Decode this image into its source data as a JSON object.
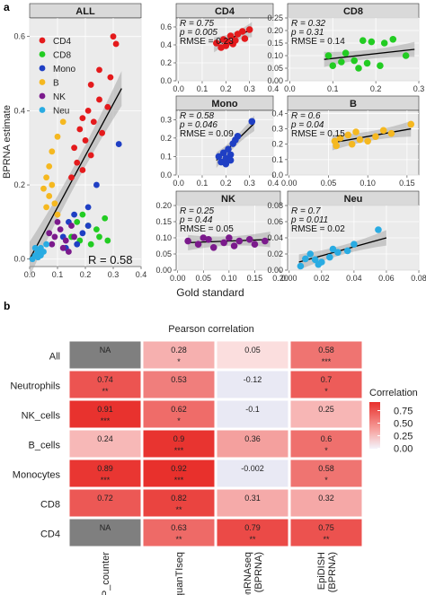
{
  "panel_labels": {
    "a": "a",
    "b": "b"
  },
  "colors": {
    "CD4": "#e41a1c",
    "CD8": "#22cc22",
    "Mono": "#1f3fc4",
    "B": "#f5b820",
    "NK": "#7b1a8c",
    "Neu": "#29abe2",
    "panel_bg": "#ebebeb",
    "grid": "#ffffff",
    "strip_bg": "#d9d9d9",
    "fit_line": "#000000",
    "ci_band": "#9a9a9a",
    "na_cell": "#7f7f7f",
    "heat_low": "#f0f0fa",
    "heat_high": "#e8302c"
  },
  "chart_data": [
    {
      "type": "scatter",
      "strip": "ALL",
      "ylabel": "BPRNA estimate",
      "xlabel": "Gold standard",
      "xlim": [
        0,
        0.4
      ],
      "ylim": [
        -0.02,
        0.65
      ],
      "xticks": [
        "0.0",
        "0.1",
        "0.2",
        "0.3",
        "0.4"
      ],
      "yticks": [
        "0.0",
        "0.2",
        "0.4",
        "0.6"
      ],
      "legend": [
        "CD4",
        "CD8",
        "Mono",
        "B",
        "NK",
        "Neu"
      ],
      "legend_position": "top-left",
      "stat_text": "R =  0.58",
      "grid": true,
      "fit": {
        "x0": 0.0,
        "y0": 0.0,
        "x1": 0.33,
        "y1": 0.46
      },
      "points": [
        {
          "g": "CD4",
          "x": 0.3,
          "y": 0.6
        },
        {
          "g": "CD4",
          "x": 0.31,
          "y": 0.58
        },
        {
          "g": "CD4",
          "x": 0.25,
          "y": 0.51
        },
        {
          "g": "CD4",
          "x": 0.22,
          "y": 0.47
        },
        {
          "g": "CD4",
          "x": 0.29,
          "y": 0.49
        },
        {
          "g": "CD4",
          "x": 0.19,
          "y": 0.38
        },
        {
          "g": "CD4",
          "x": 0.21,
          "y": 0.4
        },
        {
          "g": "CD4",
          "x": 0.18,
          "y": 0.35
        },
        {
          "g": "CD4",
          "x": 0.25,
          "y": 0.43
        },
        {
          "g": "CD4",
          "x": 0.28,
          "y": 0.41
        },
        {
          "g": "CD4",
          "x": 0.23,
          "y": 0.37
        },
        {
          "g": "CD4",
          "x": 0.16,
          "y": 0.3
        },
        {
          "g": "CD4",
          "x": 0.2,
          "y": 0.32
        },
        {
          "g": "CD4",
          "x": 0.22,
          "y": 0.28
        },
        {
          "g": "CD4",
          "x": 0.15,
          "y": 0.22
        },
        {
          "g": "CD4",
          "x": 0.19,
          "y": 0.24
        },
        {
          "g": "CD4",
          "x": 0.17,
          "y": 0.26
        },
        {
          "g": "CD4",
          "x": 0.26,
          "y": 0.34
        },
        {
          "g": "CD8",
          "x": 0.19,
          "y": 0.12
        },
        {
          "g": "CD8",
          "x": 0.17,
          "y": 0.1
        },
        {
          "g": "CD8",
          "x": 0.21,
          "y": 0.09
        },
        {
          "g": "CD8",
          "x": 0.24,
          "y": 0.08
        },
        {
          "g": "CD8",
          "x": 0.27,
          "y": 0.11
        },
        {
          "g": "CD8",
          "x": 0.15,
          "y": 0.06
        },
        {
          "g": "CD8",
          "x": 0.18,
          "y": 0.05
        },
        {
          "g": "CD8",
          "x": 0.22,
          "y": 0.04
        },
        {
          "g": "CD8",
          "x": 0.25,
          "y": 0.06
        },
        {
          "g": "CD8",
          "x": 0.28,
          "y": 0.05
        },
        {
          "g": "Mono",
          "x": 0.32,
          "y": 0.31
        },
        {
          "g": "Mono",
          "x": 0.24,
          "y": 0.2
        },
        {
          "g": "Mono",
          "x": 0.21,
          "y": 0.14
        },
        {
          "g": "Mono",
          "x": 0.16,
          "y": 0.12
        },
        {
          "g": "Mono",
          "x": 0.14,
          "y": 0.1
        },
        {
          "g": "Mono",
          "x": 0.19,
          "y": 0.07
        },
        {
          "g": "Mono",
          "x": 0.12,
          "y": 0.06
        },
        {
          "g": "Mono",
          "x": 0.17,
          "y": 0.04
        },
        {
          "g": "Mono",
          "x": 0.13,
          "y": 0.03
        },
        {
          "g": "Mono",
          "x": 0.21,
          "y": 0.09
        },
        {
          "g": "B",
          "x": 0.12,
          "y": 0.37
        },
        {
          "g": "B",
          "x": 0.1,
          "y": 0.33
        },
        {
          "g": "B",
          "x": 0.08,
          "y": 0.29
        },
        {
          "g": "B",
          "x": 0.07,
          "y": 0.25
        },
        {
          "g": "B",
          "x": 0.06,
          "y": 0.22
        },
        {
          "g": "B",
          "x": 0.08,
          "y": 0.2
        },
        {
          "g": "B",
          "x": 0.07,
          "y": 0.17
        },
        {
          "g": "B",
          "x": 0.09,
          "y": 0.15
        },
        {
          "g": "B",
          "x": 0.06,
          "y": 0.14
        },
        {
          "g": "B",
          "x": 0.1,
          "y": 0.12
        },
        {
          "g": "B",
          "x": 0.05,
          "y": 0.19
        },
        {
          "g": "NK",
          "x": 0.15,
          "y": 0.09
        },
        {
          "g": "NK",
          "x": 0.11,
          "y": 0.08
        },
        {
          "g": "NK",
          "x": 0.09,
          "y": 0.06
        },
        {
          "g": "NK",
          "x": 0.13,
          "y": 0.05
        },
        {
          "g": "NK",
          "x": 0.08,
          "y": 0.04
        },
        {
          "g": "NK",
          "x": 0.12,
          "y": 0.03
        },
        {
          "g": "NK",
          "x": 0.07,
          "y": 0.07
        },
        {
          "g": "NK",
          "x": 0.1,
          "y": 0.1
        },
        {
          "g": "NK",
          "x": 0.14,
          "y": 0.02
        },
        {
          "g": "NK",
          "x": 0.16,
          "y": 0.06
        },
        {
          "g": "Neu",
          "x": 0.06,
          "y": 0.04
        },
        {
          "g": "Neu",
          "x": 0.04,
          "y": 0.03
        },
        {
          "g": "Neu",
          "x": 0.03,
          "y": 0.02
        },
        {
          "g": "Neu",
          "x": 0.02,
          "y": 0.01
        },
        {
          "g": "Neu",
          "x": 0.05,
          "y": 0.02
        },
        {
          "g": "Neu",
          "x": 0.03,
          "y": 0.005
        },
        {
          "g": "Neu",
          "x": 0.01,
          "y": 0.0
        },
        {
          "g": "Neu",
          "x": 0.04,
          "y": 0.01
        },
        {
          "g": "Neu",
          "x": 0.02,
          "y": 0.03
        }
      ]
    },
    {
      "type": "scatter",
      "strip": "CD4",
      "group": "CD4",
      "stats": [
        "R = 0.75",
        "p = 0.005",
        "RMSE = 0.23"
      ],
      "xlim": [
        -0.01,
        0.4
      ],
      "ylim": [
        0,
        0.7
      ],
      "xticks": [
        "0.0",
        "0.1",
        "0.2",
        "0.3",
        "0.4"
      ],
      "yticks": [
        "0.0",
        "0.2",
        "0.4",
        "0.6"
      ],
      "fit": {
        "x0": 0.15,
        "y0": 0.4,
        "x1": 0.31,
        "y1": 0.57
      },
      "points": [
        [
          0.16,
          0.42
        ],
        [
          0.18,
          0.37
        ],
        [
          0.19,
          0.46
        ],
        [
          0.21,
          0.43
        ],
        [
          0.22,
          0.5
        ],
        [
          0.23,
          0.41
        ],
        [
          0.25,
          0.52
        ],
        [
          0.27,
          0.55
        ],
        [
          0.28,
          0.47
        ],
        [
          0.3,
          0.57
        ],
        [
          0.2,
          0.39
        ],
        [
          0.24,
          0.45
        ]
      ]
    },
    {
      "type": "scatter",
      "strip": "CD8",
      "group": "CD8",
      "stats": [
        "R = 0.32",
        "p = 0.31",
        "RMSE = 0.14"
      ],
      "xlim": [
        -0.005,
        0.3
      ],
      "ylim": [
        0,
        0.25
      ],
      "xticks": [
        "0.0",
        "0.1",
        "0.2",
        "0.3"
      ],
      "yticks": [
        "0.00",
        "0.05",
        "0.10",
        "0.15",
        "0.20",
        "0.25"
      ],
      "fit": {
        "x0": 0.08,
        "y0": 0.085,
        "x1": 0.29,
        "y1": 0.125
      },
      "points": [
        [
          0.09,
          0.1
        ],
        [
          0.1,
          0.06
        ],
        [
          0.12,
          0.075
        ],
        [
          0.13,
          0.11
        ],
        [
          0.15,
          0.08
        ],
        [
          0.16,
          0.05
        ],
        [
          0.18,
          0.07
        ],
        [
          0.17,
          0.16
        ],
        [
          0.19,
          0.155
        ],
        [
          0.22,
          0.15
        ],
        [
          0.24,
          0.165
        ],
        [
          0.27,
          0.1
        ],
        [
          0.21,
          0.06
        ]
      ]
    },
    {
      "type": "scatter",
      "strip": "Mono",
      "group": "Mono",
      "stats": [
        "R = 0.58",
        "p = 0.046",
        "RMSE = 0.09"
      ],
      "xlim": [
        -0.01,
        0.4
      ],
      "ylim": [
        0,
        0.35
      ],
      "xticks": [
        "0.0",
        "0.1",
        "0.2",
        "0.3",
        "0.4"
      ],
      "yticks": [
        "0.0",
        "0.1",
        "0.2",
        "0.3"
      ],
      "fit": {
        "x0": 0.16,
        "y0": 0.08,
        "x1": 0.32,
        "y1": 0.28
      },
      "points": [
        [
          0.17,
          0.1
        ],
        [
          0.18,
          0.07
        ],
        [
          0.19,
          0.12
        ],
        [
          0.2,
          0.09
        ],
        [
          0.21,
          0.14
        ],
        [
          0.22,
          0.11
        ],
        [
          0.23,
          0.17
        ],
        [
          0.24,
          0.19
        ],
        [
          0.25,
          0.21
        ],
        [
          0.22,
          0.08
        ],
        [
          0.2,
          0.06
        ],
        [
          0.31,
          0.29
        ]
      ]
    },
    {
      "type": "scatter",
      "strip": "B",
      "group": "B",
      "stats": [
        "R = 0.6",
        "p = 0.04",
        "RMSE = 0.15"
      ],
      "xlim": [
        -0.002,
        0.165
      ],
      "ylim": [
        0,
        0.42
      ],
      "xticks": [
        "0.00",
        "0.05",
        "0.10",
        "0.15"
      ],
      "yticks": [
        "0.0",
        "0.1",
        "0.2",
        "0.3",
        "0.4"
      ],
      "fit": {
        "x0": 0.055,
        "y0": 0.21,
        "x1": 0.155,
        "y1": 0.3
      },
      "points": [
        [
          0.058,
          0.22
        ],
        [
          0.065,
          0.24
        ],
        [
          0.075,
          0.26
        ],
        [
          0.08,
          0.2
        ],
        [
          0.085,
          0.28
        ],
        [
          0.09,
          0.23
        ],
        [
          0.1,
          0.22
        ],
        [
          0.11,
          0.25
        ],
        [
          0.12,
          0.29
        ],
        [
          0.13,
          0.27
        ],
        [
          0.155,
          0.33
        ],
        [
          0.06,
          0.19
        ]
      ]
    },
    {
      "type": "scatter",
      "strip": "NK",
      "group": "NK",
      "stats": [
        "R = 0.25",
        "p = 0.44",
        "RMSE = 0.05"
      ],
      "xlim": [
        -0.003,
        0.2
      ],
      "ylim": [
        0,
        0.2
      ],
      "xticks": [
        "0.00",
        "0.05",
        "0.10",
        "0.15",
        "0.20"
      ],
      "yticks": [
        "0.00",
        "0.05",
        "0.10",
        "0.15",
        "0.20"
      ],
      "fit": {
        "x0": 0.02,
        "y0": 0.085,
        "x1": 0.18,
        "y1": 0.095
      },
      "points": [
        [
          0.02,
          0.09
        ],
        [
          0.04,
          0.08
        ],
        [
          0.06,
          0.095
        ],
        [
          0.07,
          0.07
        ],
        [
          0.09,
          0.085
        ],
        [
          0.1,
          0.1
        ],
        [
          0.11,
          0.075
        ],
        [
          0.12,
          0.09
        ],
        [
          0.14,
          0.095
        ],
        [
          0.15,
          0.08
        ],
        [
          0.17,
          0.09
        ],
        [
          0.05,
          0.1
        ]
      ]
    },
    {
      "type": "scatter",
      "strip": "Neu",
      "group": "Neu",
      "stats": [
        "R = 0.7",
        "p = 0.011",
        "RMSE = 0.02"
      ],
      "xlim": [
        -0.001,
        0.08
      ],
      "ylim": [
        0,
        0.08
      ],
      "xticks": [
        "0.00",
        "0.02",
        "0.04",
        "0.06",
        "0.08"
      ],
      "yticks": [
        "0.00",
        "0.02",
        "0.04",
        "0.06",
        "0.08"
      ],
      "fit": {
        "x0": 0.006,
        "y0": 0.01,
        "x1": 0.06,
        "y1": 0.04
      },
      "points": [
        [
          0.007,
          0.005
        ],
        [
          0.01,
          0.014
        ],
        [
          0.013,
          0.02
        ],
        [
          0.016,
          0.013
        ],
        [
          0.018,
          0.007
        ],
        [
          0.02,
          0.01
        ],
        [
          0.025,
          0.016
        ],
        [
          0.027,
          0.026
        ],
        [
          0.03,
          0.022
        ],
        [
          0.036,
          0.024
        ],
        [
          0.04,
          0.032
        ],
        [
          0.055,
          0.05
        ]
      ]
    },
    {
      "type": "heatmap",
      "title": "Pearson correlation",
      "rows": [
        "All",
        "Neutrophils",
        "NK_cells",
        "B_cells",
        "Monocytes",
        "CD8",
        "CD4"
      ],
      "columns": [
        "MCP_counter",
        "quanTIseq",
        "deconRNAseq\n(BPRNA)",
        "EpiDISH\n(BPRNA)"
      ],
      "values": [
        [
          null,
          0.28,
          0.05,
          0.58
        ],
        [
          0.74,
          0.53,
          -0.12,
          0.7
        ],
        [
          0.91,
          0.62,
          -0.1,
          0.25
        ],
        [
          0.24,
          0.9,
          0.36,
          0.6
        ],
        [
          0.89,
          0.92,
          -0.002,
          0.58
        ],
        [
          0.72,
          0.82,
          0.31,
          0.32
        ],
        [
          null,
          0.63,
          0.79,
          0.75
        ]
      ],
      "labels": [
        [
          "NA",
          "0.28",
          "0.05",
          "0.58"
        ],
        [
          "0.74",
          "0.53",
          "-0.12",
          "0.7"
        ],
        [
          "0.91",
          "0.62",
          "-0.1",
          "0.25"
        ],
        [
          "0.24",
          "0.9",
          "0.36",
          "0.6"
        ],
        [
          "0.89",
          "0.92",
          "-0.002",
          "0.58"
        ],
        [
          "0.72",
          "0.82",
          "0.31",
          "0.32"
        ],
        [
          "NA",
          "0.63",
          "0.79",
          "0.75"
        ]
      ],
      "stars": [
        [
          "",
          "*",
          "",
          "***"
        ],
        [
          "**",
          "",
          "",
          "*"
        ],
        [
          "***",
          "*",
          "",
          ""
        ],
        [
          "",
          "***",
          "",
          "*"
        ],
        [
          "***",
          "***",
          "",
          "*"
        ],
        [
          "",
          "**",
          "",
          ""
        ],
        [
          "",
          "**",
          "**",
          "**"
        ]
      ],
      "legend_title": "Correlation",
      "legend_ticks": [
        "0.75",
        "0.50",
        "0.25",
        "0.00"
      ],
      "legend_tick_values": [
        0.75,
        0.5,
        0.25,
        0.0
      ],
      "legend_position": "right"
    }
  ]
}
